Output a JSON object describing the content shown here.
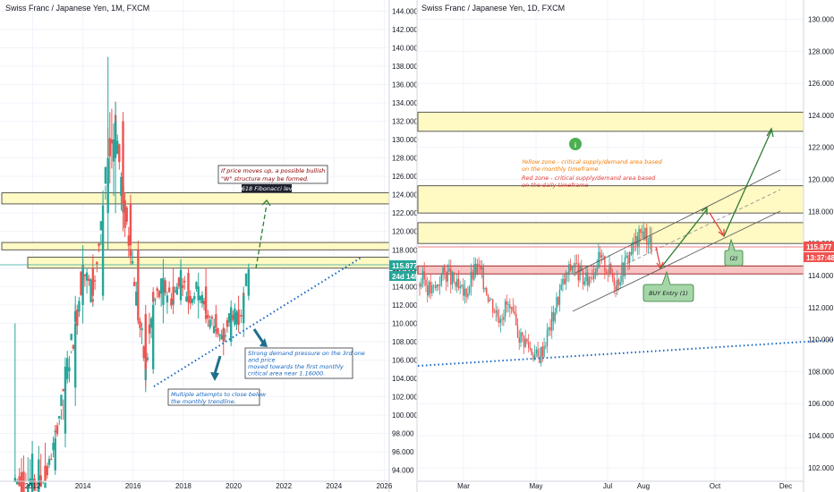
{
  "chart_data": [
    {
      "type": "candlestick",
      "title": "Swiss Franc / Japanese Yen, 1M, FXCM",
      "x_ticks": [
        "2012",
        "2014",
        "2016",
        "2018",
        "2020",
        "2022",
        "2024",
        "2026"
      ],
      "x_range": [
        2010.7,
        2026.2
      ],
      "y_ticks": [
        "94.000",
        "96.000",
        "98.000",
        "100.000",
        "102.000",
        "104.000",
        "106.000",
        "108.000",
        "110.000",
        "112.000",
        "114.000",
        "116.000",
        "118.000",
        "120.000",
        "122.000",
        "124.000",
        "126.000",
        "128.000",
        "130.000",
        "132.000",
        "134.000",
        "136.000",
        "138.000",
        "140.000",
        "142.000",
        "144.000"
      ],
      "ylim": [
        92.8,
        145.2
      ],
      "price_label": "115.877",
      "countdown_label": "24d 14h",
      "zones": [
        {
          "kind": "yellow",
          "from": 123.0,
          "to": 124.2
        },
        {
          "kind": "yellow",
          "from": 118.0,
          "to": 118.8
        },
        {
          "kind": "yellow",
          "from": 116.0,
          "to": 117.2
        }
      ],
      "candles_sketch": [
        {
          "t": 2011.3,
          "o": 92.8,
          "h": 110.0,
          "l": 92.8,
          "c": 92.8
        },
        {
          "t": 2012.5,
          "o": 94.5,
          "h": 97.0,
          "l": 92.8,
          "c": 92.8
        },
        {
          "t": 2012.9,
          "o": 94.0,
          "h": 98.5,
          "l": 93.5,
          "c": 97.5
        },
        {
          "t": 2013.3,
          "o": 98.0,
          "h": 106.0,
          "l": 96.5,
          "c": 104.0
        },
        {
          "t": 2013.7,
          "o": 103.0,
          "h": 112.0,
          "l": 101.0,
          "c": 110.0
        },
        {
          "t": 2014.0,
          "o": 112.0,
          "h": 118.5,
          "l": 110.0,
          "c": 116.0
        },
        {
          "t": 2014.4,
          "o": 116.0,
          "h": 117.5,
          "l": 112.0,
          "c": 113.0
        },
        {
          "t": 2014.8,
          "o": 113.0,
          "h": 124.0,
          "l": 112.5,
          "c": 122.0
        },
        {
          "t": 2015.0,
          "o": 122.0,
          "h": 139.0,
          "l": 118.0,
          "c": 128.0
        },
        {
          "t": 2015.3,
          "o": 128.0,
          "h": 134.0,
          "l": 122.0,
          "c": 132.0
        },
        {
          "t": 2015.6,
          "o": 132.0,
          "h": 133.0,
          "l": 120.0,
          "c": 123.0
        },
        {
          "t": 2015.9,
          "o": 123.0,
          "h": 124.0,
          "l": 117.0,
          "c": 118.5
        },
        {
          "t": 2016.2,
          "o": 118.0,
          "h": 119.0,
          "l": 110.0,
          "c": 111.0
        },
        {
          "t": 2016.5,
          "o": 111.0,
          "h": 112.0,
          "l": 103.0,
          "c": 105.0
        },
        {
          "t": 2016.8,
          "o": 105.0,
          "h": 113.0,
          "l": 104.5,
          "c": 112.0
        },
        {
          "t": 2017.2,
          "o": 112.0,
          "h": 117.0,
          "l": 110.0,
          "c": 114.0
        },
        {
          "t": 2017.6,
          "o": 114.0,
          "h": 116.0,
          "l": 111.0,
          "c": 112.5
        },
        {
          "t": 2017.9,
          "o": 112.5,
          "h": 117.0,
          "l": 112.0,
          "c": 115.5
        },
        {
          "t": 2018.2,
          "o": 115.5,
          "h": 116.0,
          "l": 111.0,
          "c": 112.5
        },
        {
          "t": 2018.6,
          "o": 112.5,
          "h": 115.5,
          "l": 110.5,
          "c": 114.0
        },
        {
          "t": 2018.9,
          "o": 114.0,
          "h": 116.0,
          "l": 110.0,
          "c": 111.0
        },
        {
          "t": 2019.3,
          "o": 111.0,
          "h": 112.0,
          "l": 108.5,
          "c": 109.5
        },
        {
          "t": 2019.6,
          "o": 109.5,
          "h": 110.0,
          "l": 106.5,
          "c": 108.0
        },
        {
          "t": 2019.9,
          "o": 108.0,
          "h": 112.5,
          "l": 107.5,
          "c": 111.5
        },
        {
          "t": 2020.2,
          "o": 111.5,
          "h": 113.0,
          "l": 109.0,
          "c": 110.0
        },
        {
          "t": 2020.4,
          "o": 110.0,
          "h": 114.0,
          "l": 108.5,
          "c": 113.0
        },
        {
          "t": 2020.6,
          "o": 113.0,
          "h": 116.5,
          "l": 112.5,
          "c": 115.9
        }
      ],
      "annotations": [
        {
          "text": "If price moves up, a possible bullish \"W\" structure may be formed.",
          "color": "#8b0000"
        },
        {
          "text": "0.618 Fibonacci level",
          "color": "#ffffff"
        },
        {
          "text": "Strong demand pressure on the 3rd one and price moved towards the first monthly critical area near 1.16000.",
          "color": "#1565c0"
        },
        {
          "text": "Multiple attempts to close below the monthly trendline.",
          "color": "#1565c0"
        }
      ]
    },
    {
      "type": "candlestick",
      "title": "Swiss Franc / Japanese Yen, 1D, FXCM",
      "x_ticks": [
        "Mar",
        "May",
        "Jul",
        "Aug",
        "Oct",
        "Dec"
      ],
      "y_ticks": [
        "102.000",
        "104.000",
        "106.000",
        "108.000",
        "110.000",
        "112.000",
        "114.000",
        "116.000",
        "118.000",
        "120.000",
        "122.000",
        "124.000",
        "126.000",
        "128.000",
        "130.000"
      ],
      "ylim": [
        101.6,
        131.2
      ],
      "price_label": "115.877",
      "countdown_label": "13:37:48",
      "zones": [
        {
          "kind": "yellow",
          "from": 123.0,
          "to": 124.2
        },
        {
          "kind": "yellow",
          "from": 117.9,
          "to": 119.6
        },
        {
          "kind": "yellow",
          "from": 116.0,
          "to": 117.3
        },
        {
          "kind": "red",
          "from": 114.1,
          "to": 114.6
        }
      ],
      "close_path": [
        113.5,
        113.8,
        113.2,
        113.0,
        113.4,
        114.0,
        114.2,
        113.8,
        113.5,
        113.0,
        112.8,
        113.2,
        114.0,
        114.5,
        114.1,
        113.4,
        112.6,
        112.0,
        111.5,
        111.8,
        112.2,
        111.5,
        110.8,
        110.2,
        110.0,
        109.6,
        109.2,
        108.8,
        109.4,
        110.2,
        111.0,
        112.0,
        113.0,
        113.6,
        114.2,
        114.8,
        114.4,
        113.8,
        113.6,
        114.0,
        114.6,
        115.0,
        114.8,
        114.4,
        114.0,
        113.6,
        114.2,
        114.8,
        115.4,
        115.9,
        116.3,
        116.8,
        116.4,
        115.9
      ],
      "annotations": [
        {
          "text": "Yellow zone - critical supply/demand area based on the monthly timeframe",
          "color": "#f57c00"
        },
        {
          "text": "Red zone - critical supply/demand area based on the daily timeframe",
          "color": "#e53935"
        },
        {
          "text": "BUY Entry (1)",
          "color": "#131722"
        },
        {
          "text": "(2)",
          "color": "#131722"
        }
      ]
    }
  ]
}
